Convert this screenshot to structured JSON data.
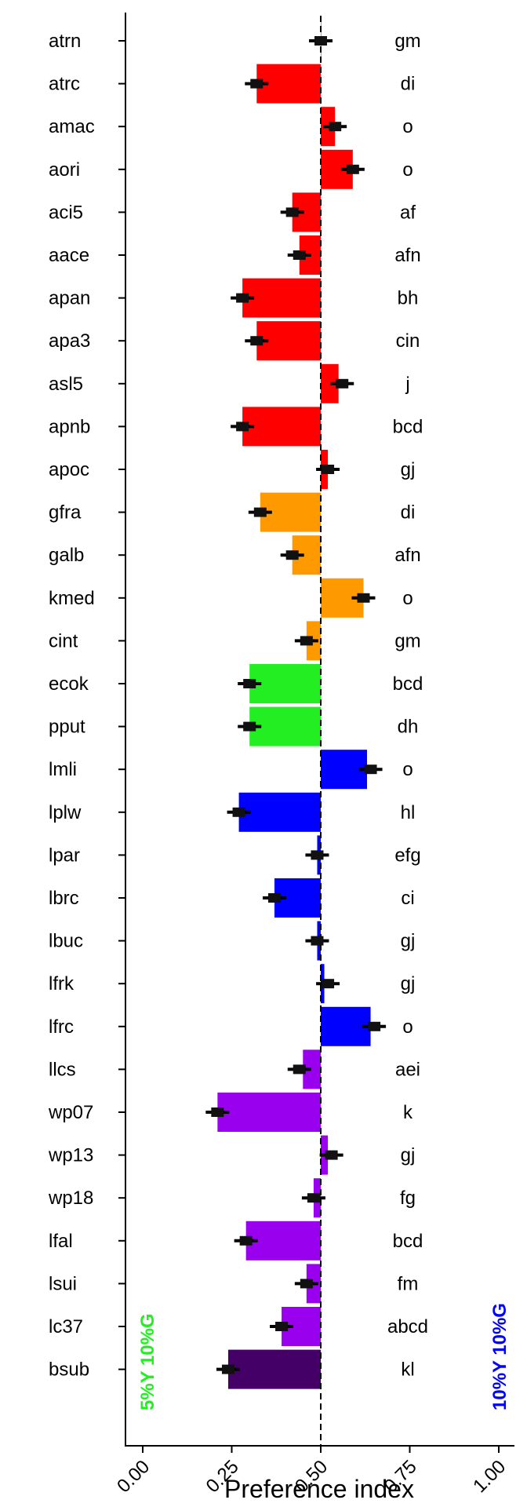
{
  "chart_data": {
    "type": "bar",
    "orientation": "horizontal",
    "xlabel": "Preference index",
    "xlim": [
      0.0,
      1.0
    ],
    "x_ticks": [
      "0.00",
      "0.25",
      "0.50",
      "0.75",
      "1.00"
    ],
    "reference_line": 0.5,
    "left_note": "5%Y 10%G",
    "right_note": "10%Y 10%G",
    "left_note_color": "#22ee22",
    "right_note_color": "#0000ff",
    "colors": {
      "red": "#ff0000",
      "orange": "#ff9900",
      "green": "#22ee22",
      "blue": "#0000ff",
      "purple": "#9900ee",
      "darkpurple": "#440066"
    },
    "categories": [
      "atrn",
      "atrc",
      "amac",
      "aori",
      "aci5",
      "aace",
      "apan",
      "apa3",
      "asl5",
      "apnb",
      "apoc",
      "gfra",
      "galb",
      "kmed",
      "cint",
      "ecok",
      "pput",
      "lmli",
      "lplw",
      "lpar",
      "lbrc",
      "lbuc",
      "lfrk",
      "lfrc",
      "llcs",
      "wp07",
      "wp13",
      "wp18",
      "lfal",
      "lsui",
      "lc37",
      "bsub"
    ],
    "values": [
      0.5,
      0.32,
      0.54,
      0.59,
      0.42,
      0.44,
      0.28,
      0.32,
      0.55,
      0.28,
      0.52,
      0.33,
      0.42,
      0.62,
      0.46,
      0.3,
      0.3,
      0.63,
      0.27,
      0.49,
      0.37,
      0.49,
      0.51,
      0.64,
      0.45,
      0.21,
      0.52,
      0.48,
      0.29,
      0.46,
      0.39,
      0.24
    ],
    "markers": [
      0.5,
      0.32,
      0.54,
      0.59,
      0.42,
      0.44,
      0.28,
      0.32,
      0.56,
      0.28,
      0.52,
      0.33,
      0.42,
      0.62,
      0.46,
      0.3,
      0.3,
      0.64,
      0.27,
      0.49,
      0.37,
      0.49,
      0.52,
      0.65,
      0.44,
      0.21,
      0.53,
      0.48,
      0.29,
      0.46,
      0.39,
      0.24
    ],
    "bar_colors": [
      "red",
      "red",
      "red",
      "red",
      "red",
      "red",
      "red",
      "red",
      "red",
      "red",
      "red",
      "orange",
      "orange",
      "orange",
      "orange",
      "green",
      "green",
      "blue",
      "blue",
      "blue",
      "blue",
      "blue",
      "blue",
      "blue",
      "purple",
      "purple",
      "purple",
      "purple",
      "purple",
      "purple",
      "purple",
      "darkpurple"
    ],
    "groups": [
      "gm",
      "di",
      "o",
      "o",
      "af",
      "afn",
      "bh",
      "cin",
      "j",
      "bcd",
      "gj",
      "di",
      "afn",
      "o",
      "gm",
      "bcd",
      "dh",
      "o",
      "hl",
      "efg",
      "ci",
      "gj",
      "gj",
      "o",
      "aei",
      "k",
      "gj",
      "fg",
      "bcd",
      "fm",
      "abcd",
      "kl"
    ]
  }
}
